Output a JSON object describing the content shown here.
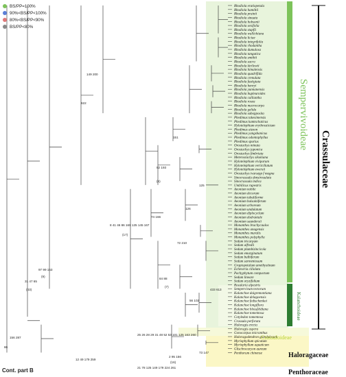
{
  "legend": [
    {
      "label": "BS/PP=100%",
      "color": "#7dc35a"
    },
    {
      "label": "90%<BS/PP<100%",
      "color": "#5b7fd6"
    },
    {
      "label": "80%<BS/PP<90%",
      "color": "#e07878"
    },
    {
      "label": "BS/PP<80%",
      "color": "#8a8a8a"
    }
  ],
  "taxa": [
    "Rhodiola eratiopetala",
    "Rhodiola hamiltii",
    "Rhodiola prainii",
    "Rhodiola sinuata",
    "Rhodiola hobsonii",
    "Rhodiola sexifolia",
    "Rhodiola stapfii",
    "Rhodiola wallichiana",
    "Rhodiola liciae",
    "Rhodiola integrifolia",
    "Rhodiola rhodantha",
    "Rhodiola dumulosa",
    "Rhodiola tangutica",
    "Rhodiola smithii",
    "Rhodiola sacra",
    "Rhodiola kirilowii",
    "Rhodiola himalensis",
    "Rhodiola quadrifida",
    "Rhodiola crenulata",
    "Rhodiola fastigiata",
    "Rhodiola henryi",
    "Rhodiola yunnanensis",
    "Rhodiola bupleuroides",
    "Rhodiola calliantha",
    "Rhodiola rosea",
    "Rhodiola macrocarpa",
    "Rhodiola gelida",
    "Rhodiola subopposita",
    "Phedimus takesimensis",
    "Phedimus kamtschaticus",
    "Hylotelephium erythrostictum",
    "Phedimus aizoon",
    "Phedimus yangshanicus",
    "Phedimus odontophyllus",
    "Phedimus spurius",
    "Orostachys minuta",
    "Orostachys japonica",
    "Orostachys fimbriata",
    "Meterostachys sikokiana",
    "Hylotelephium viviparum",
    "Hylotelephium verticillatum",
    "Hylotelephium ewersii",
    "Orostachys ivarsepp f magna",
    "Sinocrassula densirosulata",
    "Sinocrassula indica",
    "Umbilicus rupestris",
    "Aeonium nobile",
    "Aeonium decorum",
    "Aeonium tabuliforme",
    "Aeonium balsamiferum",
    "Aeonium arboreum",
    "Aeonium undulatum",
    "Aeonium diplocyclum",
    "Aeonium dodrantale",
    "Aeonium saundersii",
    "Monanthes brachycaulos",
    "Monanthes anagensis",
    "Monanthes muralis",
    "Monanthes polyphylla",
    "Sedum tricarpum",
    "Sedum alfredii",
    "Sedum plumbizincicola",
    "Sedum emarginatum",
    "Sedum bulbiferum",
    "Sedum sarmentosum",
    "Graptopetalum amethystinum",
    "Echeveria ciliolata",
    "Pachyphytum compactum",
    "Sedum lineare",
    "Sedum oryzifolium",
    "Rosularia alpestris",
    "Sempervivum tectorum",
    "Kalanchoe daigremontiana",
    "Kalanchoe delagoensis",
    "Kalanchoe fedtschenkoi",
    "Kalanchoe longiflora",
    "Kalanchoe blossfeldiana",
    "Kalanchoe tomentosa",
    "Cotyledon tomentosa",
    "Crassula perforata",
    "Haloragis erecta",
    "Haloragis aspera",
    "Gonocarpus micranthus",
    "Haloragodendron glandulosum",
    "Myriophyllum spicatum",
    "Myriophyllum aquaticum",
    "Glischrocaryon aureum",
    "Penthorum chinense"
  ],
  "node_labels": [
    {
      "text": "149 200",
      "node": "rhodiola-core"
    },
    {
      "text": "622",
      "node": "rhodiola-stem"
    },
    {
      "text": "151",
      "node": "phedimus"
    },
    {
      "text": "82 193",
      "node": "orostachys"
    },
    {
      "text": "(6)",
      "node": "orostachys-sub"
    },
    {
      "text": "125",
      "node": "sinocrassula"
    },
    {
      "text": "8 41 46 86 169 125 145 167",
      "node": "aeonium-stem"
    },
    {
      "text": "(17)",
      "node": "aeonium-sub"
    },
    {
      "text": "74 166",
      "node": "aeonium-core"
    },
    {
      "text": "126",
      "node": "aeonium-inner"
    },
    {
      "text": "72 210",
      "node": "monanthes"
    },
    {
      "text": "84 88",
      "node": "sedum-core"
    },
    {
      "text": "(7)",
      "node": "sedum-sub"
    },
    {
      "text": "97 99 153",
      "node": "semper-stem"
    },
    {
      "text": "(9)",
      "node": "semper-sub"
    },
    {
      "text": "31 47 65",
      "node": "crassulaceae-stem"
    },
    {
      "text": "(43)",
      "node": "crassulaceae-sub"
    },
    {
      "text": "433 613",
      "node": "kalanchoe"
    },
    {
      "text": "56 102",
      "node": "kalanchoe-inner"
    },
    {
      "text": "25 26 28 29 31 48 52 53 101 125 163 260",
      "node": "crassula-branch"
    },
    {
      "text": "73 147",
      "node": "haloragis"
    },
    {
      "text": "2 95 156",
      "node": "haloragaceae-stem"
    },
    {
      "text": "(16)",
      "node": "haloragaceae-sub"
    },
    {
      "text": "12 49 179 259",
      "node": "halo-pentho"
    },
    {
      "text": "21 78 125 149 179 224 261",
      "node": "penthorum-branch"
    },
    {
      "text": "86",
      "node": "root-left"
    },
    {
      "text": "156 287",
      "node": "root-top"
    }
  ],
  "clades": [
    {
      "label": "Sempervivoideae",
      "color": "#7dc35a"
    },
    {
      "label": "Kalanchoideae",
      "color": "#2e7d32"
    },
    {
      "label": "Crassuloideae",
      "color": "#b6d23a"
    }
  ],
  "families": [
    {
      "label": "Crassulaceae"
    },
    {
      "label": "Haloragaceae"
    },
    {
      "label": "Penthoraceae"
    }
  ],
  "footer": {
    "cont_label": "Cont. part B"
  }
}
